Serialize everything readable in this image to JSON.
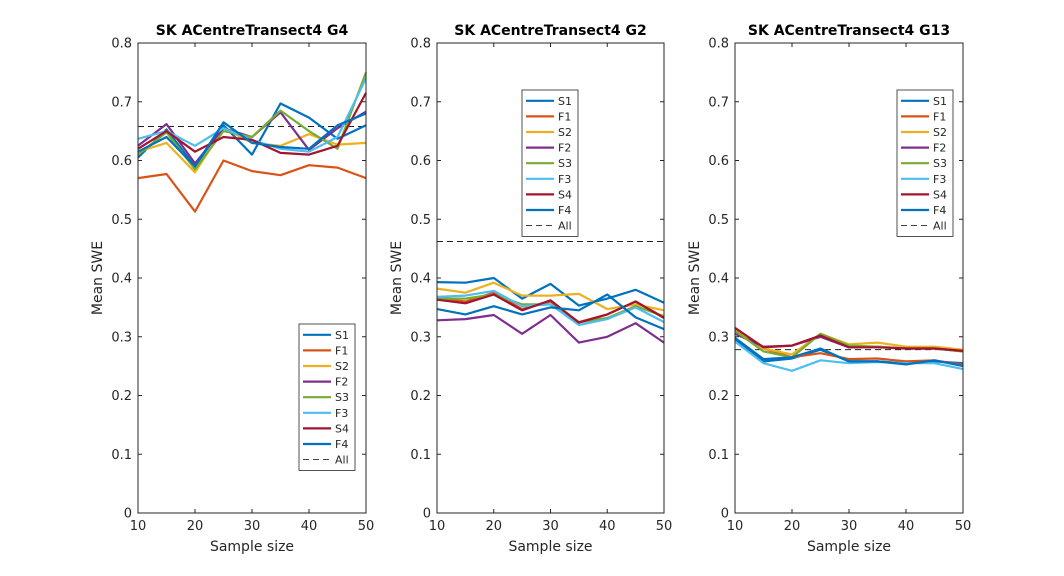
{
  "chart_data": [
    {
      "type": "line",
      "title": "SK ACentreTransect4 G4",
      "xlabel": "Sample size",
      "ylabel": "Mean SWE",
      "xlim": [
        10,
        50
      ],
      "ylim": [
        0,
        0.8
      ],
      "xticks": [
        "10",
        "20",
        "30",
        "40",
        "50"
      ],
      "yticks": [
        "0",
        "0.1",
        "0.2",
        "0.3",
        "0.4",
        "0.5",
        "0.6",
        "0.7",
        "0.8"
      ],
      "grid": false,
      "legend_position": "bottom-right",
      "x": [
        10,
        15,
        20,
        25,
        30,
        35,
        40,
        45,
        50
      ],
      "reference": {
        "name": "All",
        "value": 0.658
      },
      "series": [
        {
          "name": "S1",
          "color": "#0072BD",
          "values": [
            0.605,
            0.653,
            0.59,
            0.66,
            0.61,
            0.697,
            0.673,
            0.637,
            0.66
          ]
        },
        {
          "name": "F1",
          "color": "#D95319",
          "values": [
            0.57,
            0.577,
            0.513,
            0.6,
            0.582,
            0.575,
            0.592,
            0.588,
            0.57
          ]
        },
        {
          "name": "S2",
          "color": "#EDB120",
          "values": [
            0.615,
            0.63,
            0.58,
            0.655,
            0.63,
            0.625,
            0.645,
            0.627,
            0.63
          ]
        },
        {
          "name": "F2",
          "color": "#7E2F8E",
          "values": [
            0.625,
            0.662,
            0.595,
            0.655,
            0.64,
            0.682,
            0.618,
            0.655,
            0.683
          ]
        },
        {
          "name": "S3",
          "color": "#77AC30",
          "values": [
            0.61,
            0.648,
            0.585,
            0.65,
            0.64,
            0.685,
            0.65,
            0.62,
            0.75
          ]
        },
        {
          "name": "F3",
          "color": "#4DBEEE",
          "values": [
            0.637,
            0.65,
            0.625,
            0.655,
            0.635,
            0.62,
            0.615,
            0.64,
            0.74
          ]
        },
        {
          "name": "S4",
          "color": "#A2142F",
          "values": [
            0.62,
            0.65,
            0.615,
            0.64,
            0.635,
            0.613,
            0.61,
            0.625,
            0.715
          ]
        },
        {
          "name": "F4",
          "color": "#0072BD",
          "values": [
            0.615,
            0.64,
            0.59,
            0.665,
            0.63,
            0.623,
            0.62,
            0.66,
            0.68
          ]
        }
      ]
    },
    {
      "type": "line",
      "title": "SK ACentreTransect4 G2",
      "xlabel": "Sample size",
      "ylabel": "Mean SWE",
      "xlim": [
        10,
        50
      ],
      "ylim": [
        0,
        0.8
      ],
      "xticks": [
        "10",
        "20",
        "30",
        "40",
        "50"
      ],
      "yticks": [
        "0",
        "0.1",
        "0.2",
        "0.3",
        "0.4",
        "0.5",
        "0.6",
        "0.7",
        "0.8"
      ],
      "grid": false,
      "legend_position": "top-center",
      "x": [
        10,
        15,
        20,
        25,
        30,
        35,
        40,
        45,
        50
      ],
      "reference": {
        "name": "All",
        "value": 0.462
      },
      "series": [
        {
          "name": "S1",
          "color": "#0072BD",
          "values": [
            0.393,
            0.392,
            0.4,
            0.365,
            0.39,
            0.353,
            0.365,
            0.38,
            0.358
          ]
        },
        {
          "name": "F1",
          "color": "#D95319",
          "values": [
            0.365,
            0.36,
            0.375,
            0.347,
            0.36,
            0.325,
            0.338,
            0.36,
            0.333
          ]
        },
        {
          "name": "S2",
          "color": "#EDB120",
          "values": [
            0.382,
            0.375,
            0.392,
            0.37,
            0.37,
            0.373,
            0.347,
            0.355,
            0.345
          ]
        },
        {
          "name": "F2",
          "color": "#7E2F8E",
          "values": [
            0.328,
            0.33,
            0.337,
            0.305,
            0.337,
            0.29,
            0.3,
            0.323,
            0.29
          ]
        },
        {
          "name": "S3",
          "color": "#77AC30",
          "values": [
            0.365,
            0.365,
            0.372,
            0.355,
            0.355,
            0.325,
            0.332,
            0.352,
            0.335
          ]
        },
        {
          "name": "F3",
          "color": "#4DBEEE",
          "values": [
            0.368,
            0.37,
            0.378,
            0.352,
            0.355,
            0.32,
            0.33,
            0.35,
            0.325
          ]
        },
        {
          "name": "S4",
          "color": "#A2142F",
          "values": [
            0.363,
            0.357,
            0.372,
            0.345,
            0.362,
            0.324,
            0.338,
            0.36,
            0.332
          ]
        },
        {
          "name": "F4",
          "color": "#0072BD",
          "values": [
            0.347,
            0.338,
            0.352,
            0.338,
            0.35,
            0.345,
            0.372,
            0.333,
            0.313
          ]
        }
      ]
    },
    {
      "type": "line",
      "title": "SK ACentreTransect4 G13",
      "xlabel": "Sample size",
      "ylabel": "Mean SWE",
      "xlim": [
        10,
        50
      ],
      "ylim": [
        0,
        0.8
      ],
      "xticks": [
        "10",
        "20",
        "30",
        "40",
        "50"
      ],
      "yticks": [
        "0",
        "0.1",
        "0.2",
        "0.3",
        "0.4",
        "0.5",
        "0.6",
        "0.7",
        "0.8"
      ],
      "grid": false,
      "legend_position": "top-right",
      "x": [
        10,
        15,
        20,
        25,
        30,
        35,
        40,
        45,
        50
      ],
      "reference": {
        "name": "All",
        "value": 0.278
      },
      "series": [
        {
          "name": "S1",
          "color": "#0072BD",
          "values": [
            0.295,
            0.258,
            0.263,
            0.278,
            0.258,
            0.258,
            0.255,
            0.258,
            0.255
          ]
        },
        {
          "name": "F1",
          "color": "#D95319",
          "values": [
            0.315,
            0.28,
            0.265,
            0.272,
            0.262,
            0.263,
            0.258,
            0.26,
            0.252
          ]
        },
        {
          "name": "S2",
          "color": "#EDB120",
          "values": [
            0.312,
            0.28,
            0.27,
            0.305,
            0.287,
            0.29,
            0.283,
            0.283,
            0.278
          ]
        },
        {
          "name": "F2",
          "color": "#7E2F8E",
          "values": [
            0.305,
            0.283,
            0.285,
            0.3,
            0.282,
            0.283,
            0.28,
            0.28,
            0.275
          ]
        },
        {
          "name": "S3",
          "color": "#77AC30",
          "values": [
            0.31,
            0.275,
            0.265,
            0.305,
            0.285,
            0.283,
            0.28,
            0.28,
            0.275
          ]
        },
        {
          "name": "F3",
          "color": "#4DBEEE",
          "values": [
            0.292,
            0.255,
            0.242,
            0.26,
            0.255,
            0.257,
            0.255,
            0.255,
            0.245
          ]
        },
        {
          "name": "S4",
          "color": "#A2142F",
          "values": [
            0.315,
            0.282,
            0.285,
            0.302,
            0.282,
            0.282,
            0.28,
            0.28,
            0.276
          ]
        },
        {
          "name": "F4",
          "color": "#0072BD",
          "values": [
            0.298,
            0.262,
            0.265,
            0.28,
            0.258,
            0.258,
            0.253,
            0.26,
            0.25
          ]
        }
      ]
    }
  ]
}
